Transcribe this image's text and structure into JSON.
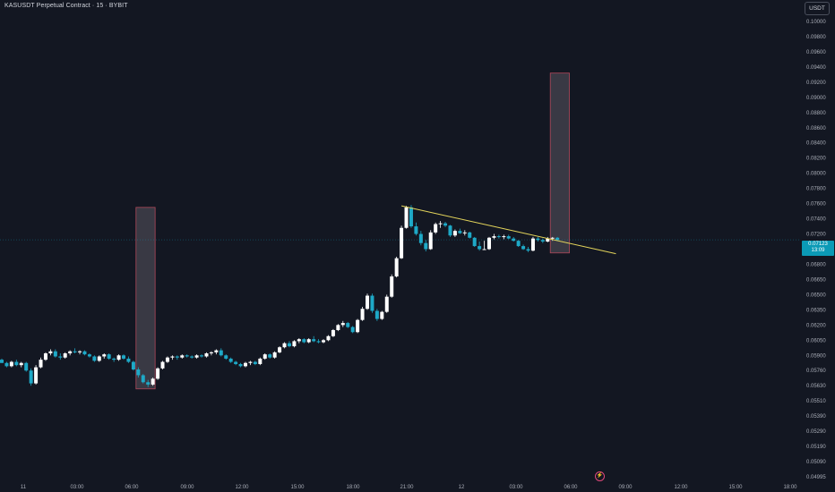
{
  "header": {
    "title": "KASUSDT Perpetual Contract · 15 · BYBIT",
    "currency": "USDT"
  },
  "price_tag": {
    "price": "0.07123",
    "countdown": "13:09"
  },
  "colors": {
    "background": "#131722",
    "up": "#ffffff",
    "down": "#1ea9c7",
    "trendline": "#e4d55b",
    "box_fill": "#5a5560",
    "box_border": "#b0485a",
    "price_tag": "#0b9ab6"
  },
  "icons": {
    "bolt": "lightning-bolt-icon"
  },
  "chart_data": {
    "type": "candlestick",
    "title": "KASUSDT Perpetual Contract · 15 · BYBIT",
    "y_axis": {
      "ticks": [
        "0.10000",
        "0.09800",
        "0.09600",
        "0.09400",
        "0.09200",
        "0.09000",
        "0.08800",
        "0.08600",
        "0.08400",
        "0.08200",
        "0.08000",
        "0.07800",
        "0.07600",
        "0.07400",
        "0.07200",
        "0.07000",
        "0.06800",
        "0.06650",
        "0.06500",
        "0.06350",
        "0.06200",
        "0.06050",
        "0.05900",
        "0.05760",
        "0.05630",
        "0.05510",
        "0.05390",
        "0.05290",
        "0.05190",
        "0.05090",
        "0.04995"
      ]
    },
    "x_axis": {
      "ticks": [
        "11",
        "03:00",
        "06:00",
        "09:00",
        "12:00",
        "15:00",
        "18:00",
        "21:00",
        "12",
        "03:00",
        "06:00",
        "09:00",
        "12:00",
        "15:00",
        "18:00"
      ]
    },
    "last_price": 0.07123,
    "candles": [
      [
        0.0586,
        0.0587,
        0.0583,
        0.0583
      ],
      [
        0.0583,
        0.0584,
        0.0579,
        0.058
      ],
      [
        0.058,
        0.0585,
        0.0579,
        0.0584
      ],
      [
        0.0584,
        0.0586,
        0.058,
        0.0581
      ],
      [
        0.0581,
        0.0584,
        0.0579,
        0.0583
      ],
      [
        0.0583,
        0.0584,
        0.0575,
        0.0576
      ],
      [
        0.0576,
        0.0578,
        0.0563,
        0.0565
      ],
      [
        0.0565,
        0.0581,
        0.0564,
        0.0579
      ],
      [
        0.0579,
        0.0588,
        0.0578,
        0.0586
      ],
      [
        0.0586,
        0.0593,
        0.0585,
        0.0592
      ],
      [
        0.0592,
        0.0596,
        0.059,
        0.0594
      ],
      [
        0.0594,
        0.0596,
        0.0588,
        0.0589
      ],
      [
        0.0589,
        0.0592,
        0.0586,
        0.0588
      ],
      [
        0.0588,
        0.0593,
        0.0587,
        0.0592
      ],
      [
        0.0592,
        0.0595,
        0.059,
        0.0594
      ],
      [
        0.0594,
        0.0597,
        0.0592,
        0.0593
      ],
      [
        0.0593,
        0.0595,
        0.0591,
        0.0594
      ],
      [
        0.0594,
        0.0595,
        0.059,
        0.0591
      ],
      [
        0.0591,
        0.0592,
        0.0588,
        0.0589
      ],
      [
        0.0589,
        0.059,
        0.0584,
        0.0585
      ],
      [
        0.0585,
        0.059,
        0.0584,
        0.0589
      ],
      [
        0.0589,
        0.0592,
        0.0587,
        0.0591
      ],
      [
        0.0591,
        0.0592,
        0.0586,
        0.0587
      ],
      [
        0.0587,
        0.0588,
        0.0584,
        0.0586
      ],
      [
        0.0586,
        0.0591,
        0.0585,
        0.059
      ],
      [
        0.059,
        0.0591,
        0.0586,
        0.0587
      ],
      [
        0.0587,
        0.0589,
        0.0583,
        0.0584
      ],
      [
        0.0584,
        0.0585,
        0.0576,
        0.0577
      ],
      [
        0.0577,
        0.0579,
        0.057,
        0.0572
      ],
      [
        0.0572,
        0.0573,
        0.0565,
        0.0566
      ],
      [
        0.0566,
        0.0568,
        0.0562,
        0.0564
      ],
      [
        0.0564,
        0.057,
        0.0563,
        0.0569
      ],
      [
        0.0569,
        0.0579,
        0.0568,
        0.0578
      ],
      [
        0.0578,
        0.0585,
        0.0577,
        0.0584
      ],
      [
        0.0584,
        0.0589,
        0.0583,
        0.0588
      ],
      [
        0.0588,
        0.059,
        0.0586,
        0.0589
      ],
      [
        0.0589,
        0.059,
        0.0586,
        0.0588
      ],
      [
        0.0588,
        0.0591,
        0.0587,
        0.059
      ],
      [
        0.059,
        0.0591,
        0.0588,
        0.0589
      ],
      [
        0.0589,
        0.059,
        0.0587,
        0.0588
      ],
      [
        0.0588,
        0.0591,
        0.0587,
        0.059
      ],
      [
        0.059,
        0.0591,
        0.0588,
        0.0589
      ],
      [
        0.0589,
        0.0593,
        0.0588,
        0.0592
      ],
      [
        0.0592,
        0.0594,
        0.059,
        0.0593
      ],
      [
        0.0593,
        0.0596,
        0.0591,
        0.0595
      ],
      [
        0.0595,
        0.0597,
        0.0589,
        0.059
      ],
      [
        0.059,
        0.0591,
        0.0586,
        0.0587
      ],
      [
        0.0587,
        0.0588,
        0.0583,
        0.0584
      ],
      [
        0.0584,
        0.0585,
        0.0581,
        0.0582
      ],
      [
        0.0582,
        0.0583,
        0.0579,
        0.058
      ],
      [
        0.058,
        0.0584,
        0.0579,
        0.0583
      ],
      [
        0.0583,
        0.0585,
        0.0581,
        0.0584
      ],
      [
        0.0584,
        0.0585,
        0.0581,
        0.0582
      ],
      [
        0.0582,
        0.0588,
        0.0581,
        0.0587
      ],
      [
        0.0587,
        0.0592,
        0.0586,
        0.0591
      ],
      [
        0.0591,
        0.0592,
        0.0587,
        0.0588
      ],
      [
        0.0588,
        0.0594,
        0.0587,
        0.0593
      ],
      [
        0.0593,
        0.0599,
        0.0592,
        0.0598
      ],
      [
        0.0598,
        0.0603,
        0.0597,
        0.0602
      ],
      [
        0.0602,
        0.0604,
        0.0598,
        0.0599
      ],
      [
        0.0599,
        0.0605,
        0.0598,
        0.0604
      ],
      [
        0.0604,
        0.0607,
        0.0602,
        0.0606
      ],
      [
        0.0606,
        0.0607,
        0.0602,
        0.0603
      ],
      [
        0.0603,
        0.0607,
        0.0602,
        0.0606
      ],
      [
        0.0606,
        0.0609,
        0.0603,
        0.0604
      ],
      [
        0.0604,
        0.0606,
        0.0602,
        0.0603
      ],
      [
        0.0603,
        0.0606,
        0.0602,
        0.0605
      ],
      [
        0.0605,
        0.061,
        0.0604,
        0.0609
      ],
      [
        0.0609,
        0.0616,
        0.0608,
        0.0615
      ],
      [
        0.0615,
        0.0621,
        0.0614,
        0.062
      ],
      [
        0.062,
        0.0624,
        0.0618,
        0.0622
      ],
      [
        0.0622,
        0.0623,
        0.0617,
        0.0618
      ],
      [
        0.0618,
        0.0619,
        0.0612,
        0.0613
      ],
      [
        0.0613,
        0.0626,
        0.0612,
        0.0625
      ],
      [
        0.0625,
        0.0638,
        0.0624,
        0.0636
      ],
      [
        0.0636,
        0.0651,
        0.0635,
        0.0649
      ],
      [
        0.0649,
        0.0651,
        0.0632,
        0.0634
      ],
      [
        0.0634,
        0.0636,
        0.0624,
        0.0626
      ],
      [
        0.0626,
        0.0634,
        0.0625,
        0.0633
      ],
      [
        0.0633,
        0.065,
        0.0632,
        0.0648
      ],
      [
        0.0648,
        0.067,
        0.0647,
        0.0668
      ],
      [
        0.0668,
        0.069,
        0.0667,
        0.0688
      ],
      [
        0.0688,
        0.0731,
        0.0687,
        0.0728
      ],
      [
        0.0728,
        0.0757,
        0.0727,
        0.0755
      ],
      [
        0.0755,
        0.0758,
        0.0728,
        0.073
      ],
      [
        0.073,
        0.0735,
        0.0718,
        0.072
      ],
      [
        0.072,
        0.0724,
        0.0705,
        0.0708
      ],
      [
        0.0708,
        0.0712,
        0.0697,
        0.07
      ],
      [
        0.07,
        0.0725,
        0.0699,
        0.0722
      ],
      [
        0.0722,
        0.0735,
        0.072,
        0.0733
      ],
      [
        0.0733,
        0.0737,
        0.0728,
        0.0734
      ],
      [
        0.0734,
        0.0736,
        0.0729,
        0.0731
      ],
      [
        0.0731,
        0.0732,
        0.0716,
        0.0718
      ],
      [
        0.0718,
        0.0726,
        0.0716,
        0.0724
      ],
      [
        0.0724,
        0.0727,
        0.072,
        0.0721
      ],
      [
        0.0721,
        0.0725,
        0.0718,
        0.0722
      ],
      [
        0.0722,
        0.0723,
        0.0714,
        0.0715
      ],
      [
        0.0715,
        0.0716,
        0.0703,
        0.0704
      ],
      [
        0.0704,
        0.071,
        0.0698,
        0.07
      ],
      [
        0.07,
        0.0711,
        0.0699,
        0.07
      ],
      [
        0.07,
        0.0716,
        0.0699,
        0.0715
      ],
      [
        0.0715,
        0.072,
        0.0713,
        0.0717
      ],
      [
        0.0717,
        0.0719,
        0.0714,
        0.0716
      ],
      [
        0.0716,
        0.0719,
        0.0713,
        0.0717
      ],
      [
        0.0717,
        0.0719,
        0.0713,
        0.0714
      ],
      [
        0.0714,
        0.0716,
        0.071,
        0.0711
      ],
      [
        0.0711,
        0.0712,
        0.0703,
        0.0704
      ],
      [
        0.0704,
        0.0706,
        0.0699,
        0.07
      ],
      [
        0.07,
        0.0703,
        0.0696,
        0.0698
      ],
      [
        0.0698,
        0.0716,
        0.0697,
        0.0714
      ],
      [
        0.0714,
        0.0716,
        0.071,
        0.0712
      ],
      [
        0.0712,
        0.0714,
        0.0708,
        0.071
      ],
      [
        0.071,
        0.0716,
        0.0709,
        0.0714
      ],
      [
        0.0714,
        0.0716,
        0.0711,
        0.0715
      ],
      [
        0.0715,
        0.0716,
        0.0711,
        0.0712
      ]
    ],
    "trendline": {
      "from": [
        82,
        0.0757
      ],
      "to": [
        126,
        0.0694
      ]
    },
    "zones": [
      {
        "from": 28,
        "to": 31,
        "low": 0.05605,
        "high": 0.0755
      },
      {
        "from": 113,
        "to": 116,
        "low": 0.0695,
        "high": 0.0932
      }
    ]
  }
}
